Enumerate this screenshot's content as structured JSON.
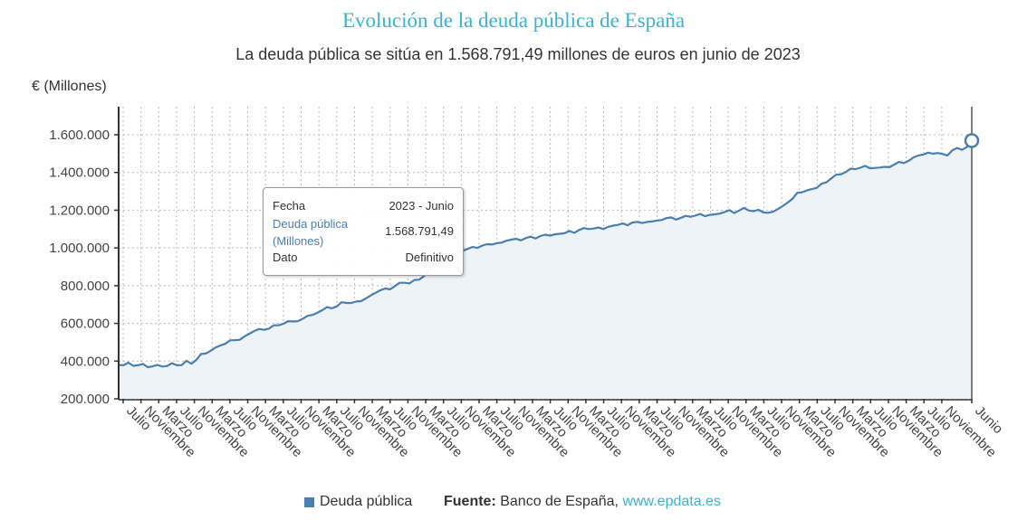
{
  "header": {
    "title": "Evolución de la deuda pública de España",
    "subtitle": "La deuda pública se sitúa en 1.568.791,49 millones de euros en junio de 2023"
  },
  "tooltip": {
    "date_label": "Fecha",
    "date_value": "2023 - Junio",
    "series_label_line1": "Deuda pública",
    "series_label_line2": "(Millones)",
    "series_value": "1.568.791,49",
    "status_label": "Dato",
    "status_value": "Definitivo"
  },
  "legend": {
    "series_name": "Deuda pública",
    "source_label": "Fuente:",
    "source_text": " Banco de España, ",
    "source_link": "www.epdata.es"
  },
  "colors": {
    "title": "#3bb2cf",
    "line": "#4a7fb0",
    "area": "#eef3f8",
    "link": "#3bb2cf"
  },
  "chart_data": {
    "type": "area",
    "title": "Evolución de la deuda pública de España",
    "subtitle": "La deuda pública se sitúa en 1.568.791,49 millones de euros en junio de 2023",
    "ylabel": "€ (Millones)",
    "xlabel": "",
    "ylim": [
      200000,
      1750000
    ],
    "yticks": [
      200000,
      400000,
      600000,
      800000,
      1000000,
      1200000,
      1400000,
      1600000
    ],
    "ytick_labels": [
      "200.000",
      "400.000",
      "600.000",
      "800.000",
      "1.000.000",
      "1.200.000",
      "1.400.000",
      "1.600.000"
    ],
    "xtick_labels": [
      "Julio",
      "Noviembre",
      "Marzo",
      "Julio",
      "Noviembre",
      "Marzo",
      "Julio",
      "Noviembre",
      "Marzo",
      "Julio",
      "Noviembre",
      "Marzo",
      "Julio",
      "Noviembre",
      "Marzo",
      "Julio",
      "Noviembre",
      "Marzo",
      "Julio",
      "Noviembre",
      "Marzo",
      "Julio",
      "Noviembre",
      "Marzo",
      "Julio",
      "Noviembre",
      "Marzo",
      "Julio",
      "Noviembre",
      "Marzo",
      "Julio",
      "Noviembre",
      "Marzo",
      "Julio",
      "Noviembre",
      "Marzo",
      "Julio",
      "Noviembre",
      "Marzo",
      "Julio",
      "Noviembre",
      "Marzo",
      "Julio",
      "Noviembre",
      "Marzo",
      "Julio",
      "Noviembre",
      "Junio"
    ],
    "grid": true,
    "legend": "bottom",
    "series": [
      {
        "name": "Deuda pública",
        "values": [
          380000,
          378000,
          392000,
          375000,
          378000,
          385000,
          368000,
          372000,
          380000,
          371000,
          374000,
          389000,
          378000,
          379000,
          402000,
          386000,
          405000,
          438000,
          440000,
          455000,
          472000,
          483000,
          492000,
          510000,
          511000,
          513000,
          532000,
          545000,
          560000,
          570000,
          566000,
          572000,
          590000,
          590000,
          598000,
          612000,
          610000,
          612000,
          625000,
          640000,
          645000,
          656000,
          670000,
          686000,
          680000,
          690000,
          712000,
          708000,
          708000,
          716000,
          718000,
          732000,
          748000,
          762000,
          776000,
          785000,
          780000,
          798000,
          815000,
          815000,
          812000,
          830000,
          832000,
          850000,
          880000,
          905000,
          925000,
          940000,
          955000,
          965000,
          975000,
          985000,
          995000,
          1005000,
          1000000,
          1012000,
          1020000,
          1018000,
          1025000,
          1028000,
          1038000,
          1044000,
          1048000,
          1040000,
          1052000,
          1060000,
          1050000,
          1063000,
          1070000,
          1065000,
          1072000,
          1075000,
          1078000,
          1090000,
          1080000,
          1095000,
          1105000,
          1100000,
          1103000,
          1108000,
          1100000,
          1112000,
          1118000,
          1122000,
          1130000,
          1120000,
          1135000,
          1138000,
          1132000,
          1138000,
          1140000,
          1145000,
          1148000,
          1158000,
          1162000,
          1150000,
          1160000,
          1170000,
          1165000,
          1172000,
          1180000,
          1168000,
          1175000,
          1178000,
          1182000,
          1190000,
          1200000,
          1185000,
          1198000,
          1212000,
          1198000,
          1195000,
          1202000,
          1188000,
          1186000,
          1192000,
          1206000,
          1222000,
          1240000,
          1260000,
          1292000,
          1295000,
          1305000,
          1312000,
          1318000,
          1340000,
          1348000,
          1368000,
          1388000,
          1390000,
          1402000,
          1420000,
          1418000,
          1425000,
          1435000,
          1422000,
          1424000,
          1426000,
          1430000,
          1428000,
          1442000,
          1456000,
          1450000,
          1462000,
          1480000,
          1490000,
          1495000,
          1505000,
          1500000,
          1503000,
          1498000,
          1490000,
          1518000,
          1530000,
          1520000,
          1535000,
          1568791
        ]
      }
    ],
    "highlight": {
      "label": "2023 - Junio",
      "value": 1568791.49
    }
  }
}
